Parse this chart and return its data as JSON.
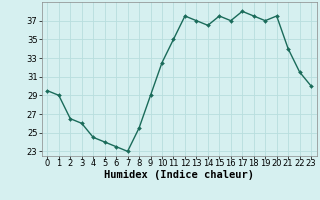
{
  "x": [
    0,
    1,
    2,
    3,
    4,
    5,
    6,
    7,
    8,
    9,
    10,
    11,
    12,
    13,
    14,
    15,
    16,
    17,
    18,
    19,
    20,
    21,
    22,
    23
  ],
  "y": [
    29.5,
    29.0,
    26.5,
    26.0,
    24.5,
    24.0,
    23.5,
    23.0,
    25.5,
    29.0,
    32.5,
    35.0,
    37.5,
    37.0,
    36.5,
    37.5,
    37.0,
    38.0,
    37.5,
    37.0,
    37.5,
    34.0,
    31.5,
    30.0
  ],
  "line_color": "#1a6b5a",
  "marker": "D",
  "marker_size": 2,
  "bg_color": "#d6f0f0",
  "grid_color": "#b8dede",
  "xlabel": "Humidex (Indice chaleur)",
  "ylim": [
    22.5,
    39
  ],
  "xlim": [
    -0.5,
    23.5
  ],
  "yticks": [
    23,
    25,
    27,
    29,
    31,
    33,
    35,
    37
  ],
  "xticks": [
    0,
    1,
    2,
    3,
    4,
    5,
    6,
    7,
    8,
    9,
    10,
    11,
    12,
    13,
    14,
    15,
    16,
    17,
    18,
    19,
    20,
    21,
    22,
    23
  ],
  "tick_fontsize": 6,
  "xlabel_fontsize": 7.5,
  "line_width": 1.0
}
